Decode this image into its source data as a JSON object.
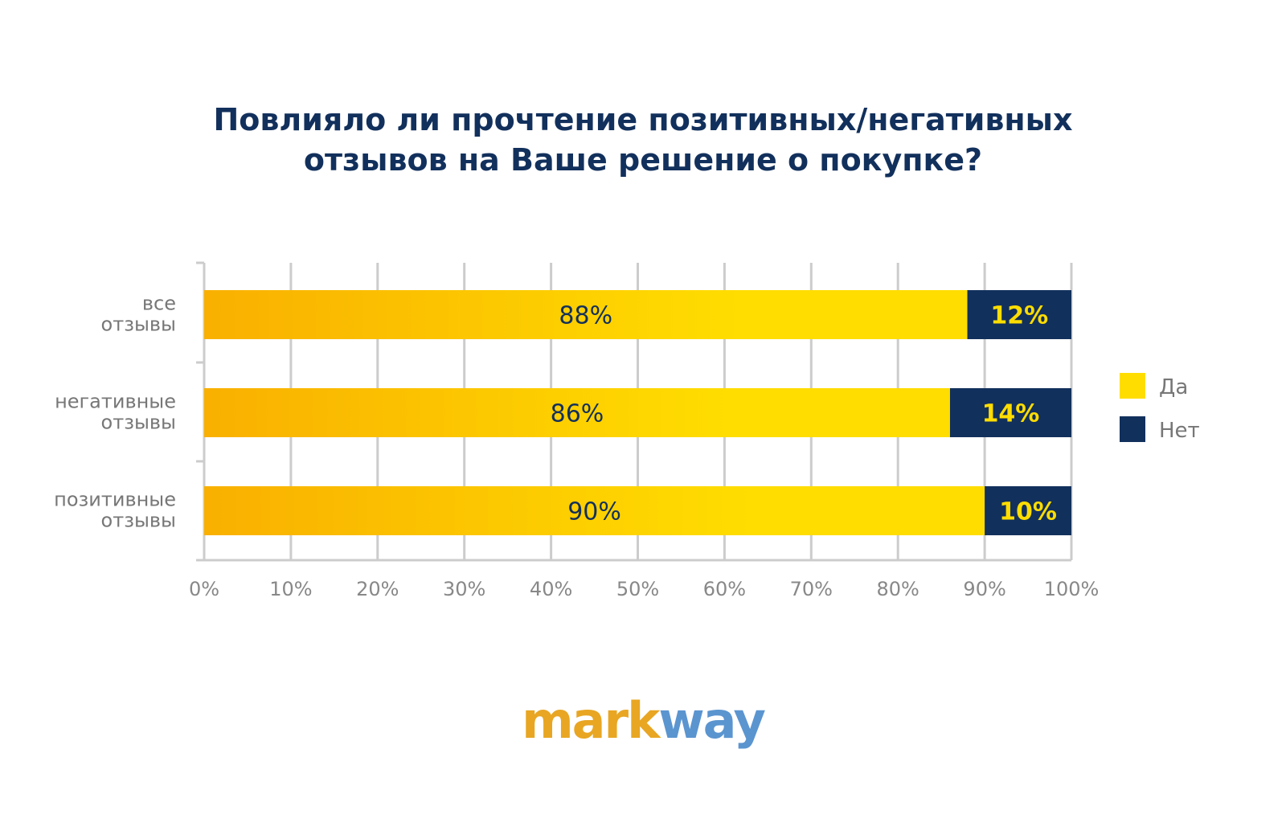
{
  "chart_data": {
    "type": "bar",
    "orientation": "horizontal",
    "stacked": true,
    "title": [
      "Повлияло ли прочтение позитивных/негативных",
      "отзывов на Ваше решение о покупке?"
    ],
    "categories": [
      [
        "все",
        "отзывы"
      ],
      [
        "негативные",
        "отзывы"
      ],
      [
        "позитивные",
        "отзывы"
      ]
    ],
    "series": [
      {
        "name": "Да",
        "values": [
          88,
          86,
          90
        ],
        "labels": [
          "88%",
          "86%",
          "90%"
        ]
      },
      {
        "name": "Нет",
        "values": [
          12,
          14,
          10
        ],
        "labels": [
          "12%",
          "14%",
          "10%"
        ]
      }
    ],
    "xlim": [
      0,
      100
    ],
    "xticks": [
      0,
      10,
      20,
      30,
      40,
      50,
      60,
      70,
      80,
      90,
      100
    ],
    "xtick_labels": [
      "0%",
      "10%",
      "20%",
      "30%",
      "40%",
      "50%",
      "60%",
      "70%",
      "80%",
      "90%",
      "100%"
    ],
    "grid": true,
    "legend_position": "right",
    "colors": {
      "da_start": "#f9b000",
      "da_end": "#ffdd00",
      "net": "#12305c",
      "net_label": "#ffdd00",
      "da_label": "#12305c",
      "grid": "#cccccc",
      "category_text": "#777777",
      "tick_text": "#888888",
      "title": "#12305c"
    }
  },
  "logo": {
    "part1": "mark",
    "part2": "way"
  }
}
